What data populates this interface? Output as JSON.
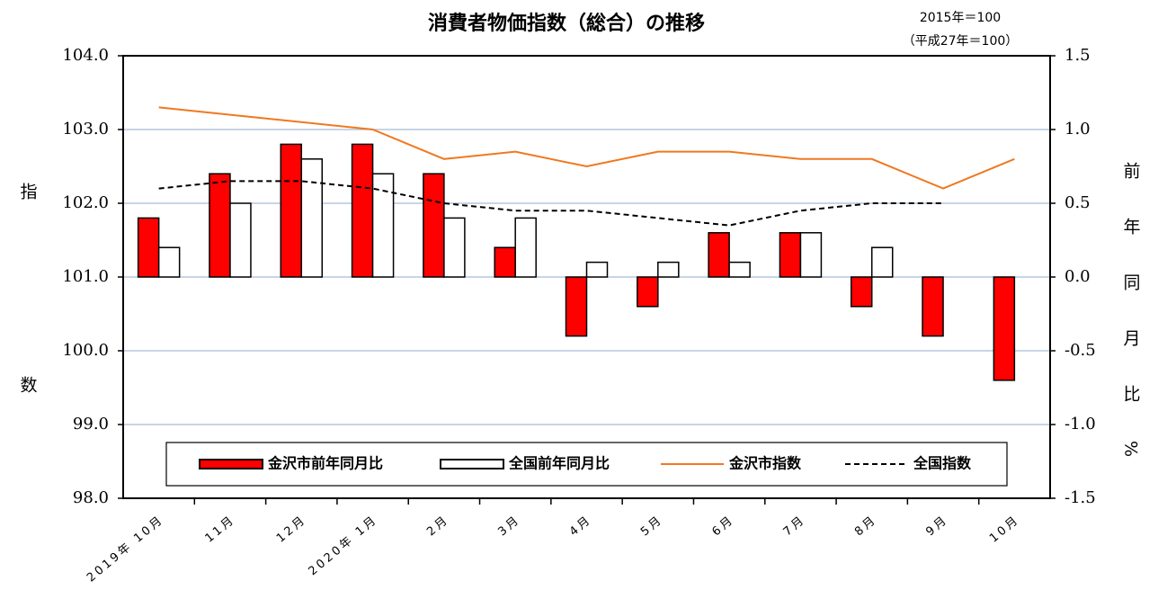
{
  "chart_data": {
    "type": "bar",
    "title": "消費者物価指数（総合）の推移",
    "note": [
      "2015年＝100",
      "（平成27年＝100）"
    ],
    "y_label": "指数",
    "y2_label": "前年同月比%",
    "categories": [
      "2019年 10月",
      "11月",
      "12月",
      "2020年 1月",
      "2月",
      "3月",
      "4月",
      "5月",
      "6月",
      "7月",
      "8月",
      "9月",
      "10月"
    ],
    "ylim": [
      98,
      104
    ],
    "yticks": [
      {
        "value": 98,
        "label": "98.0"
      },
      {
        "value": 99,
        "label": "99.0"
      },
      {
        "value": 100,
        "label": "100.0"
      },
      {
        "value": 101,
        "label": "101.0"
      },
      {
        "value": 102,
        "label": "102.0"
      },
      {
        "value": 103,
        "label": "103.0"
      },
      {
        "value": 104,
        "label": "104.0"
      }
    ],
    "y2lim": [
      -1.5,
      1.5
    ],
    "y2ticks": [
      -1.5,
      {
        "value": -1,
        "label": "-1.0"
      },
      -0.5,
      {
        "value": 0,
        "label": "0.0"
      },
      0.5,
      {
        "value": 1,
        "label": "1.0"
      },
      1.5
    ],
    "grid": true,
    "legend": "bottom",
    "series": [
      {
        "name": "金沢市前年同月比",
        "type": "bar",
        "axis": "y2",
        "color": "#ff0000",
        "values": [
          0.4,
          0.7,
          0.9,
          0.9,
          0.7,
          0.2,
          -0.4,
          -0.2,
          0.3,
          0.3,
          -0.2,
          -0.4,
          -0.7
        ]
      },
      {
        "name": "全国前年同月比",
        "type": "bar",
        "axis": "y2",
        "color": "#ffffff",
        "values": [
          0.2,
          0.5,
          0.8,
          0.7,
          0.4,
          0.4,
          0.1,
          0.1,
          0.1,
          0.3,
          0.2,
          null,
          null
        ]
      },
      {
        "name": "金沢市指数",
        "type": "line",
        "color": "#f07820",
        "line_style": "solid",
        "values": [
          103.3,
          103.2,
          103.1,
          103.0,
          102.6,
          102.7,
          102.5,
          102.7,
          102.7,
          102.6,
          102.6,
          102.2,
          102.6
        ]
      },
      {
        "name": "全国指数",
        "type": "line",
        "color": "#000000",
        "line_style": "dashed",
        "values": [
          102.2,
          102.3,
          102.3,
          102.2,
          102.0,
          101.9,
          101.9,
          101.8,
          101.7,
          101.9,
          102.0,
          102.0,
          null
        ]
      }
    ]
  }
}
